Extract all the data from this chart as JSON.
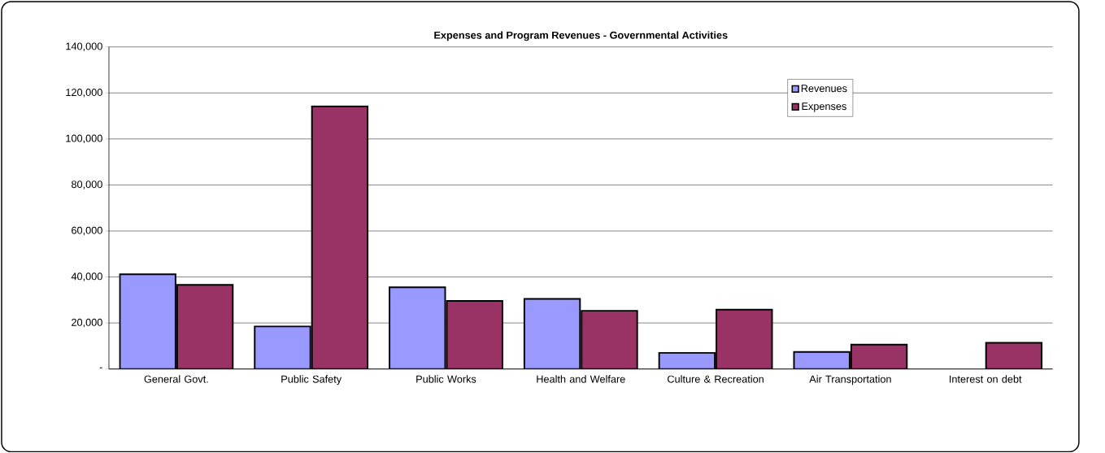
{
  "chart_data": {
    "type": "bar",
    "title": "Expenses and Program Revenues - Governmental Activities",
    "categories": [
      "General Govt.",
      "Public Safety",
      "Public Works",
      "Health and Welfare",
      "Culture & Recreation",
      "Air Transportation",
      "Interest on debt"
    ],
    "series": [
      {
        "name": "Revenues",
        "color": "#9999ff",
        "values": [
          41200,
          18500,
          35500,
          30500,
          7000,
          7400,
          null
        ]
      },
      {
        "name": "Expenses",
        "color": "#993366",
        "values": [
          36600,
          114200,
          29600,
          25300,
          25800,
          10600,
          11400
        ]
      }
    ],
    "ylim": [
      0,
      140000
    ],
    "yticks": [
      {
        "value": 0,
        "label": "-"
      },
      {
        "value": 20000,
        "label": "20,000"
      },
      {
        "value": 40000,
        "label": "40,000"
      },
      {
        "value": 60000,
        "label": "60,000"
      },
      {
        "value": 80000,
        "label": "80,000"
      },
      {
        "value": 100000,
        "label": "100,000"
      },
      {
        "value": 120000,
        "label": "120,000"
      },
      {
        "value": 140000,
        "label": "140,000"
      }
    ],
    "grid": "y",
    "legend": "top right"
  }
}
